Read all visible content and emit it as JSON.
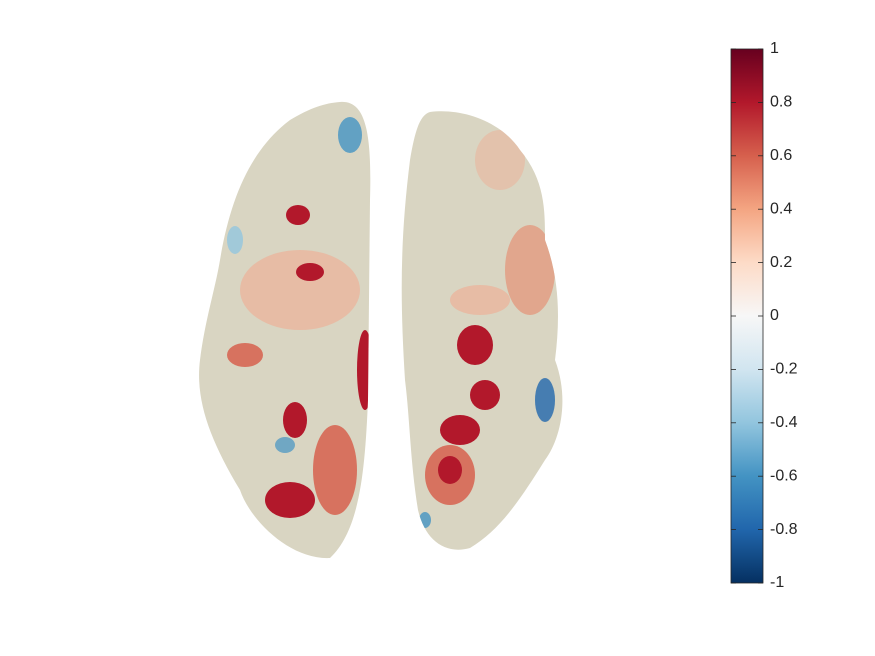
{
  "colorbar": {
    "lim": [
      -1,
      1
    ],
    "ticks": [
      -1,
      -0.8,
      -0.6,
      -0.4,
      -0.2,
      0,
      0.2,
      0.4,
      0.6,
      0.8,
      1
    ],
    "colors": [
      "#053061",
      "#2166ac",
      "#4393c3",
      "#92c5de",
      "#d1e5f0",
      "#f7f7f7",
      "#fddbc7",
      "#f4a582",
      "#d6604d",
      "#b2182b",
      "#67001f"
    ]
  }
}
